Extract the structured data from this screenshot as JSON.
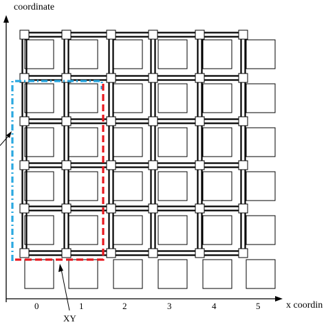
{
  "diagram": {
    "y_axis_title": "coordinate",
    "x_axis_title": "x coordin",
    "x_ticks": [
      "0",
      "1",
      "2",
      "3",
      "4",
      "5"
    ],
    "callout_label": "XY",
    "grid": {
      "columns": 6,
      "rows": 6
    },
    "colors": {
      "grid": "#000000",
      "route_xy": "#e8181e",
      "route_alt": "#2aa8e0",
      "background": "#ffffff"
    },
    "routes": [
      {
        "id": "xy",
        "style": "dashed",
        "color_key": "route_xy"
      },
      {
        "id": "alt",
        "style": "dash-dot",
        "color_key": "route_alt"
      }
    ]
  }
}
